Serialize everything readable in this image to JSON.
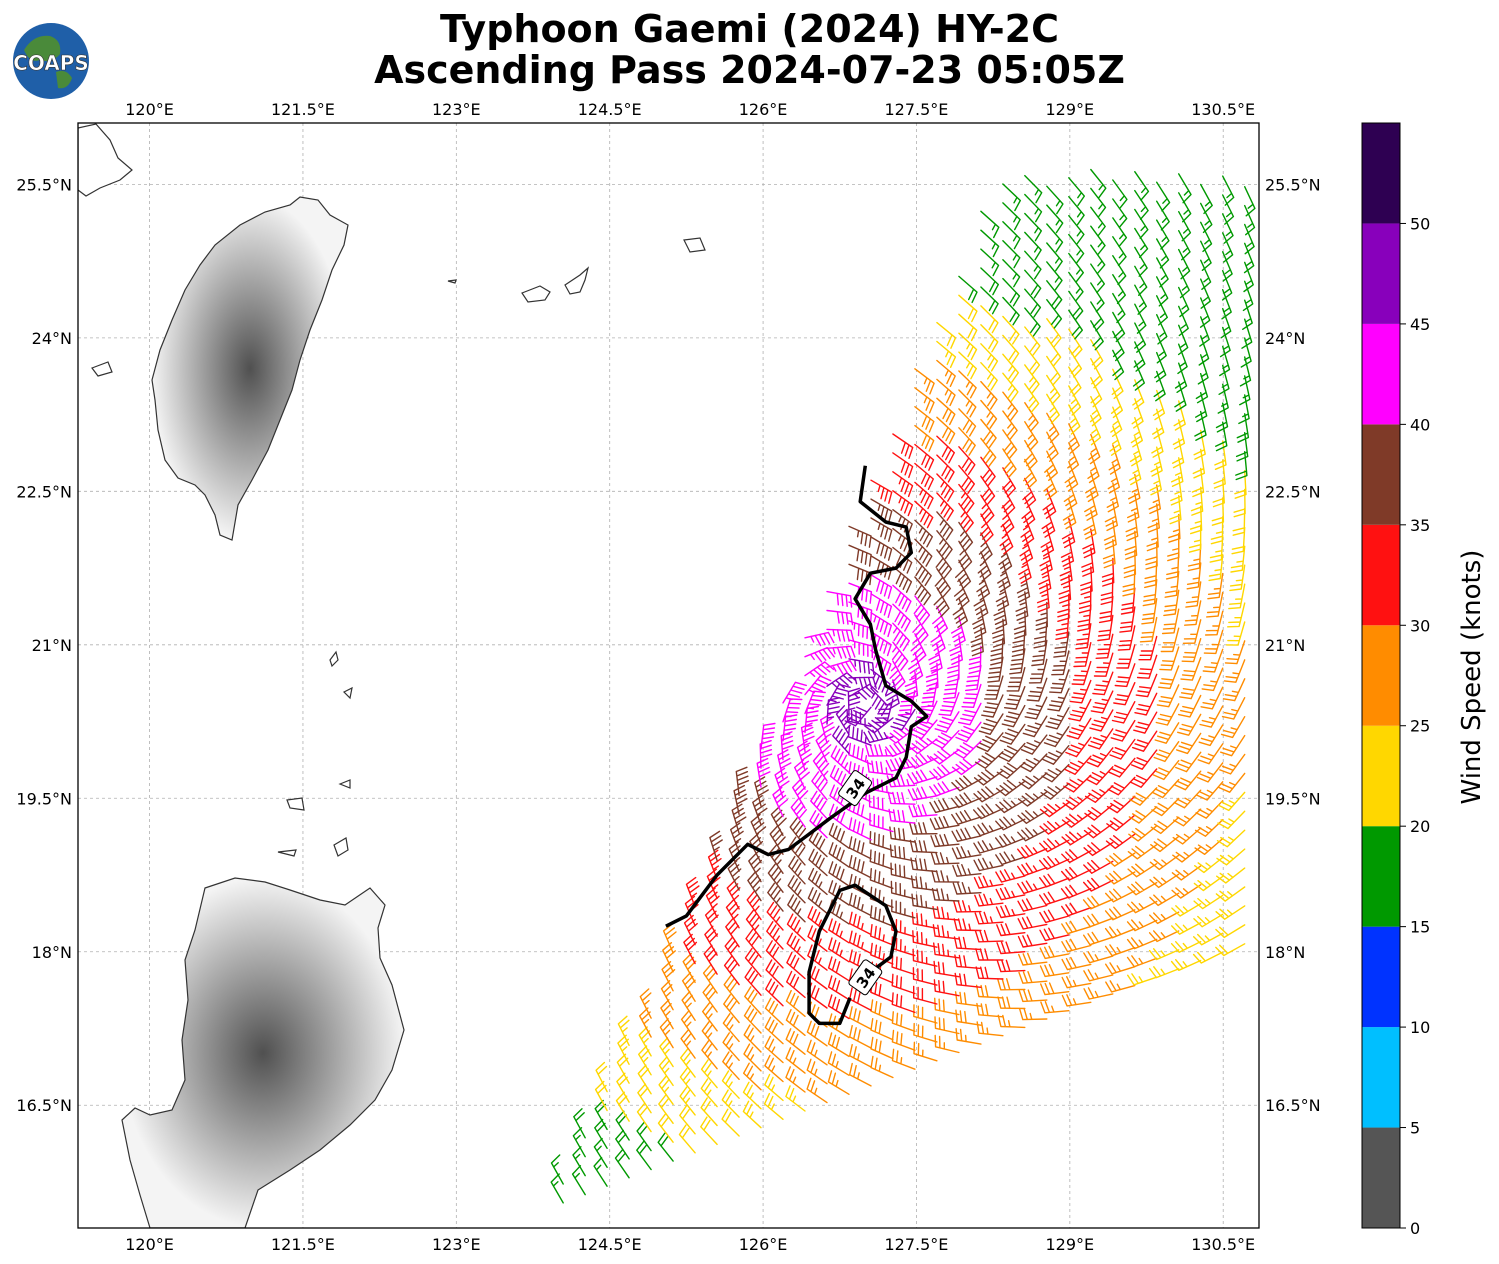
{
  "title": {
    "line1": "Typhoon Gaemi (2024) HY-2C",
    "line2": "Ascending Pass 2024-07-23 05:05Z"
  },
  "logo": {
    "text": "COAPS"
  },
  "map": {
    "lon_range": [
      119.3,
      130.85
    ],
    "lat_range": [
      15.3,
      26.1
    ],
    "lon_ticks": [
      {
        "value": 120.0,
        "label": "120°E"
      },
      {
        "value": 121.5,
        "label": "121.5°E"
      },
      {
        "value": 123.0,
        "label": "123°E"
      },
      {
        "value": 124.5,
        "label": "124.5°E"
      },
      {
        "value": 126.0,
        "label": "126°E"
      },
      {
        "value": 127.5,
        "label": "127.5°E"
      },
      {
        "value": 129.0,
        "label": "129°E"
      },
      {
        "value": 130.5,
        "label": "130.5°E"
      }
    ],
    "lat_ticks": [
      {
        "value": 16.5,
        "label": "16.5°N"
      },
      {
        "value": 18.0,
        "label": "18°N"
      },
      {
        "value": 19.5,
        "label": "19.5°N"
      },
      {
        "value": 21.0,
        "label": "21°N"
      },
      {
        "value": 22.5,
        "label": "22.5°N"
      },
      {
        "value": 24.0,
        "label": "24°N"
      },
      {
        "value": 25.5,
        "label": "25.5°N"
      }
    ],
    "gridlines": true,
    "contour_label": "34",
    "contour_labels": [
      {
        "lon": 126.9,
        "lat": 19.6,
        "text": "34"
      },
      {
        "lon": 127.0,
        "lat": 17.75,
        "text": "34"
      }
    ],
    "contour_34kt_north": [
      [
        127.0,
        22.75
      ],
      [
        126.95,
        22.4
      ],
      [
        127.2,
        22.2
      ],
      [
        127.4,
        22.15
      ],
      [
        127.45,
        21.9
      ],
      [
        127.3,
        21.75
      ],
      [
        127.05,
        21.7
      ],
      [
        126.9,
        21.45
      ],
      [
        127.05,
        21.2
      ],
      [
        127.1,
        20.95
      ],
      [
        127.2,
        20.6
      ],
      [
        127.45,
        20.45
      ],
      [
        127.6,
        20.3
      ],
      [
        127.45,
        20.2
      ],
      [
        127.4,
        19.9
      ],
      [
        127.3,
        19.7
      ],
      [
        127.0,
        19.55
      ],
      [
        126.65,
        19.3
      ],
      [
        126.45,
        19.15
      ],
      [
        126.25,
        19.0
      ],
      [
        126.05,
        18.95
      ],
      [
        125.85,
        19.05
      ],
      [
        125.55,
        18.75
      ],
      [
        125.25,
        18.35
      ],
      [
        125.05,
        18.25
      ]
    ],
    "contour_34kt_south": [
      [
        126.85,
        17.55
      ],
      [
        126.75,
        17.3
      ],
      [
        126.55,
        17.3
      ],
      [
        126.45,
        17.4
      ],
      [
        126.45,
        17.8
      ],
      [
        126.55,
        18.2
      ],
      [
        126.75,
        18.6
      ],
      [
        126.9,
        18.65
      ],
      [
        127.2,
        18.45
      ],
      [
        127.3,
        18.2
      ],
      [
        127.25,
        17.95
      ],
      [
        127.05,
        17.8
      ]
    ],
    "land_shading": "grayscale elevation"
  },
  "wind_barbs": {
    "swath_edge": [
      [
        123.75,
        15.3
      ],
      [
        124.9,
        17.5
      ],
      [
        126.0,
        20.1
      ],
      [
        127.5,
        23.8
      ],
      [
        128.3,
        25.65
      ]
    ],
    "swath_right_lon": 130.85,
    "speed_field_note_hidden": ""
  },
  "colorbar": {
    "label": "Wind Speed (knots)",
    "min": 0,
    "max": 55,
    "bounds": [
      0,
      5,
      10,
      15,
      20,
      25,
      30,
      35,
      40,
      45,
      50,
      55
    ],
    "tick_values": [
      0,
      5,
      10,
      15,
      20,
      25,
      30,
      35,
      40,
      45,
      50
    ],
    "tick_labels": [
      "0",
      "5",
      "10",
      "15",
      "20",
      "25",
      "30",
      "35",
      "40",
      "45",
      "50"
    ],
    "colors": [
      "#555555",
      "#00bfff",
      "#0033ff",
      "#009900",
      "#ffd700",
      "#ff8c00",
      "#ff1111",
      "#7f3a28",
      "#ff00ff",
      "#8800bb",
      "#2e0052"
    ]
  }
}
